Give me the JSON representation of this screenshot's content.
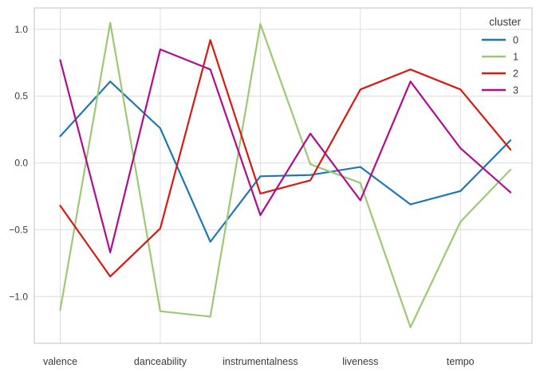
{
  "chart_data": {
    "type": "line",
    "title": "",
    "xlabel": "",
    "ylabel": "",
    "n_positions": 10,
    "x_tick_positions": [
      0,
      2,
      4,
      6,
      8
    ],
    "x_tick_labels": [
      "valence",
      "danceability",
      "instrumentalness",
      "liveness",
      "tempo"
    ],
    "y_ticks": [
      1.0,
      0.5,
      0.0,
      -0.5,
      -1.0
    ],
    "y_tick_labels": [
      "1.0",
      "0.5",
      "0.0",
      "−0.5",
      "−1.0"
    ],
    "ylim": [
      -1.35,
      1.16
    ],
    "grid": true,
    "grid_color": "#dcdcdc",
    "spine_color": "#cfcfcf",
    "tick_label_color": "#3b3b3b",
    "legend": {
      "title": "cluster",
      "position": "upper right",
      "entries": [
        "0",
        "1",
        "2",
        "3"
      ]
    },
    "series": [
      {
        "name": "0",
        "color": "#1f77b4",
        "values": [
          0.2,
          0.61,
          0.26,
          -0.59,
          -0.1,
          -0.09,
          -0.03,
          -0.31,
          -0.21,
          0.17
        ]
      },
      {
        "name": "1",
        "color": "#9dc876",
        "values": [
          -1.1,
          1.05,
          -1.11,
          -1.15,
          1.04,
          -0.01,
          -0.15,
          -1.23,
          -0.44,
          -0.05
        ]
      },
      {
        "name": "2",
        "color": "#d71a12",
        "values": [
          -0.32,
          -0.85,
          -0.49,
          0.92,
          -0.23,
          -0.13,
          0.55,
          0.7,
          0.55,
          0.1
        ]
      },
      {
        "name": "3",
        "color": "#b00d8d",
        "values": [
          0.77,
          -0.67,
          0.85,
          0.7,
          -0.39,
          0.22,
          -0.28,
          0.61,
          0.11,
          -0.22
        ]
      }
    ]
  }
}
